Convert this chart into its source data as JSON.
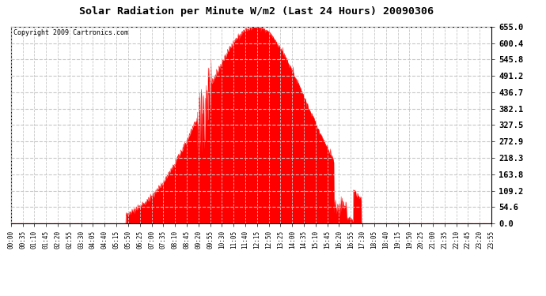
{
  "title": "Solar Radiation per Minute W/m2 (Last 24 Hours) 20090306",
  "copyright": "Copyright 2009 Cartronics.com",
  "background_color": "#ffffff",
  "plot_bg_color": "#ffffff",
  "fill_color": "#ff0000",
  "line_color": "#ff0000",
  "dashed_line_color": "#ff0000",
  "grid_color": "#c8c8c8",
  "y_tick_labels": [
    "0.0",
    "54.6",
    "109.2",
    "163.8",
    "218.3",
    "272.9",
    "327.5",
    "382.1",
    "436.7",
    "491.2",
    "545.8",
    "600.4",
    "655.0"
  ],
  "y_tick_values": [
    0.0,
    54.6,
    109.2,
    163.8,
    218.3,
    272.9,
    327.5,
    382.1,
    436.7,
    491.2,
    545.8,
    600.4,
    655.0
  ],
  "ylim": [
    0.0,
    655.0
  ],
  "x_tick_labels": [
    "00:00",
    "00:35",
    "01:10",
    "01:45",
    "02:20",
    "02:55",
    "03:30",
    "04:05",
    "04:40",
    "05:15",
    "05:50",
    "06:25",
    "07:00",
    "07:35",
    "08:10",
    "08:45",
    "09:20",
    "09:55",
    "10:30",
    "11:05",
    "11:40",
    "12:15",
    "12:50",
    "13:25",
    "14:00",
    "14:35",
    "15:10",
    "15:45",
    "16:20",
    "16:55",
    "17:30",
    "18:05",
    "18:40",
    "19:15",
    "19:50",
    "20:25",
    "21:00",
    "21:35",
    "22:10",
    "22:45",
    "23:20",
    "23:55"
  ],
  "num_points": 1440,
  "sunrise_hour": 5.75,
  "sunset_hour": 17.5,
  "peak_hour": 12.2,
  "sigma": 2.6,
  "max_val": 655.0
}
